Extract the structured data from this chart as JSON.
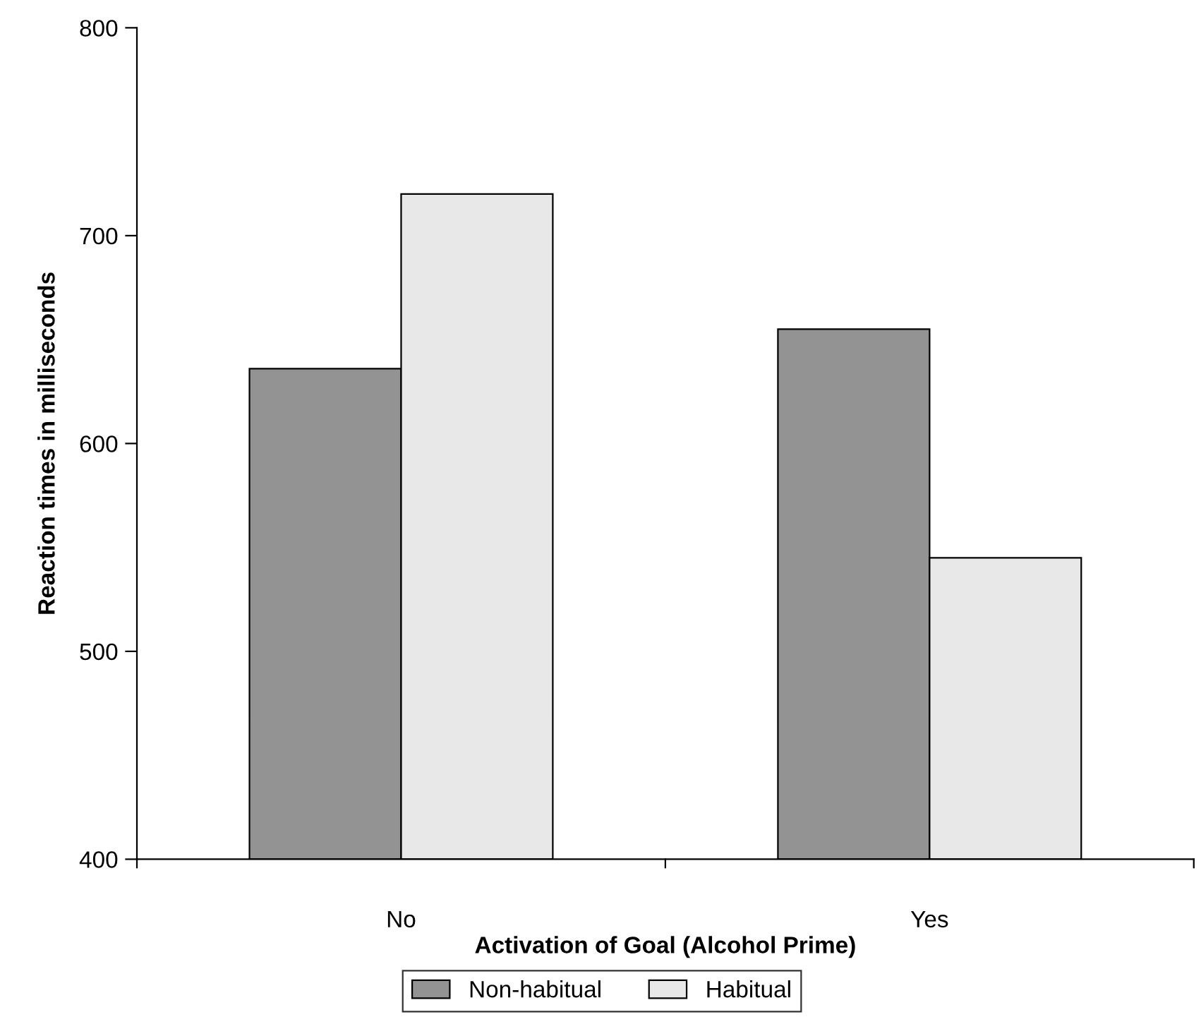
{
  "chart_data": {
    "type": "bar",
    "xlabel": "Activation of Goal (Alcohol Prime)",
    "ylabel": "Reaction times in milliseconds",
    "categories": [
      "No",
      "Yes"
    ],
    "series": [
      {
        "name": "Non-habitual",
        "color": "#939393",
        "values": [
          636,
          655
        ]
      },
      {
        "name": "Habitual",
        "color": "#e8e8e8",
        "values": [
          720,
          545
        ]
      }
    ],
    "ylim": [
      400,
      800
    ],
    "yticks": [
      400,
      500,
      600,
      700,
      800
    ],
    "grid": false,
    "legend": "bottom"
  }
}
